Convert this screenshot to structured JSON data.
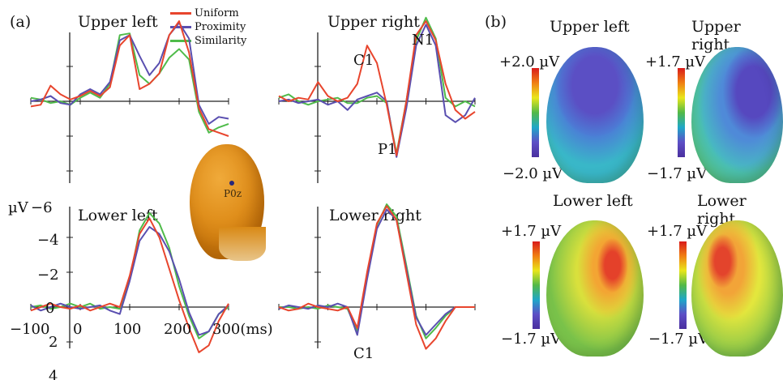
{
  "figure": {
    "panel_a_label": "(a)",
    "panel_b_label": "(b)",
    "electrode_label": "P0z"
  },
  "legend": [
    {
      "label": "Uniform",
      "color": "#e8452d"
    },
    {
      "label": "Proximity",
      "color": "#5a4fb0"
    },
    {
      "label": "Similarity",
      "color": "#4fbb4a"
    }
  ],
  "axis": {
    "y_unit_label": "µV",
    "y_ticks": [
      "−6",
      "−4",
      "−2",
      "0",
      "2",
      "4"
    ],
    "x_ticks": [
      "−100",
      "0",
      "100",
      "200",
      "300(ms)"
    ]
  },
  "chart_data": [
    {
      "type": "line",
      "title": "Upper left",
      "x": [
        -100,
        -80,
        -60,
        -40,
        -20,
        0,
        20,
        40,
        60,
        80,
        100,
        120,
        140,
        160,
        180,
        200,
        220,
        240,
        260,
        280,
        300
      ],
      "xlim": [
        -100,
        300
      ],
      "ylim": [
        4,
        -6
      ],
      "series": [
        {
          "name": "Uniform",
          "values": [
            0.3,
            0.2,
            -0.9,
            -0.4,
            -0.1,
            -0.3,
            -0.6,
            -0.3,
            -0.8,
            -3.2,
            -3.8,
            -0.7,
            -1.0,
            -1.6,
            -3.8,
            -4.6,
            -2.8,
            0.4,
            1.6,
            1.8,
            2.0
          ]
        },
        {
          "name": "Proximity",
          "values": [
            0.0,
            -0.1,
            -0.3,
            0.1,
            0.2,
            -0.4,
            -0.7,
            -0.4,
            -1.1,
            -3.5,
            -3.8,
            -2.6,
            -1.5,
            -2.2,
            -3.8,
            -4.5,
            -3.6,
            0.2,
            1.3,
            0.9,
            1.0
          ]
        },
        {
          "name": "Similarity",
          "values": [
            -0.2,
            -0.1,
            0.1,
            0.0,
            0.2,
            -0.2,
            -0.5,
            -0.2,
            -1.0,
            -3.8,
            -3.9,
            -1.5,
            -1.0,
            -1.6,
            -2.5,
            -3.0,
            -2.4,
            0.6,
            1.8,
            1.5,
            1.3
          ]
        }
      ]
    },
    {
      "type": "line",
      "title": "Upper right",
      "annotations": [
        "C1",
        "N1",
        "P1"
      ],
      "x": [
        -100,
        -80,
        -60,
        -40,
        -20,
        0,
        20,
        40,
        60,
        80,
        100,
        120,
        140,
        160,
        180,
        200,
        220,
        240,
        260,
        280,
        300
      ],
      "xlim": [
        -100,
        300
      ],
      "ylim": [
        4,
        -6
      ],
      "series": [
        {
          "name": "Uniform",
          "values": [
            -0.3,
            0.0,
            -0.2,
            -0.1,
            -1.1,
            -0.3,
            0.0,
            -0.2,
            -1.0,
            -3.2,
            -2.2,
            0.2,
            3.1,
            0.0,
            -3.8,
            -4.6,
            -3.5,
            -1.0,
            0.5,
            1.0,
            0.6
          ]
        },
        {
          "name": "Proximity",
          "values": [
            0.0,
            -0.1,
            0.1,
            0.0,
            -0.1,
            0.2,
            0.0,
            0.5,
            -0.1,
            -0.3,
            -0.5,
            0.0,
            3.2,
            0.4,
            -3.2,
            -4.4,
            -3.2,
            0.8,
            1.2,
            0.8,
            -0.2
          ]
        },
        {
          "name": "Similarity",
          "values": [
            -0.2,
            -0.4,
            0.0,
            0.2,
            0.0,
            -0.1,
            -0.2,
            0.1,
            0.1,
            -0.2,
            -0.3,
            0.1,
            3.0,
            0.0,
            -3.5,
            -4.8,
            -3.6,
            -0.2,
            0.3,
            0.0,
            0.3
          ]
        }
      ]
    },
    {
      "type": "line",
      "title": "Lower left",
      "x": [
        -100,
        -80,
        -60,
        -40,
        -20,
        0,
        20,
        40,
        60,
        80,
        100,
        120,
        140,
        160,
        180,
        200,
        220,
        240,
        260,
        280,
        300
      ],
      "xlim": [
        -100,
        300
      ],
      "ylim": [
        4,
        -6
      ],
      "series": [
        {
          "name": "Uniform",
          "values": [
            0.2,
            0.0,
            -0.2,
            0.0,
            0.1,
            -0.1,
            0.2,
            0.0,
            -0.2,
            0.0,
            -1.8,
            -4.2,
            -5.1,
            -4.0,
            -2.2,
            -0.4,
            1.2,
            2.6,
            2.2,
            0.8,
            -0.2
          ]
        },
        {
          "name": "Proximity",
          "values": [
            -0.1,
            0.2,
            0.0,
            -0.2,
            0.0,
            0.1,
            0.0,
            -0.1,
            0.2,
            0.4,
            -1.5,
            -3.8,
            -4.6,
            -4.2,
            -3.2,
            -1.6,
            0.3,
            1.6,
            1.4,
            0.4,
            -0.1
          ]
        },
        {
          "name": "Similarity",
          "values": [
            0.0,
            -0.1,
            0.1,
            0.0,
            -0.2,
            0.0,
            -0.2,
            0.1,
            0.0,
            0.1,
            -1.6,
            -4.4,
            -5.4,
            -4.8,
            -3.4,
            -1.2,
            0.5,
            1.8,
            1.4,
            0.4,
            0.0
          ]
        }
      ]
    },
    {
      "type": "line",
      "title": "Lower right",
      "annotations": [
        "C1"
      ],
      "x": [
        -100,
        -80,
        -60,
        -40,
        -20,
        0,
        20,
        40,
        60,
        80,
        100,
        120,
        140,
        160,
        180,
        200,
        220,
        240,
        260,
        280,
        300
      ],
      "xlim": [
        -100,
        300
      ],
      "ylim": [
        4,
        -6
      ],
      "series": [
        {
          "name": "Uniform",
          "values": [
            0.0,
            0.2,
            0.1,
            -0.2,
            0.0,
            0.1,
            0.2,
            0.0,
            1.2,
            -2.0,
            -4.8,
            -5.8,
            -5.0,
            -2.0,
            1.0,
            2.4,
            1.8,
            0.8,
            0.0,
            0.0,
            0.0
          ]
        },
        {
          "name": "Proximity",
          "values": [
            0.1,
            -0.1,
            0.0,
            0.1,
            -0.1,
            0.0,
            -0.2,
            0.0,
            1.6,
            -1.6,
            -4.5,
            -5.6,
            -5.0,
            -2.2,
            0.6,
            1.6,
            1.0,
            0.4,
            0.0,
            0.0,
            0.0
          ]
        },
        {
          "name": "Similarity",
          "values": [
            0.0,
            0.0,
            0.1,
            0.0,
            0.1,
            -0.1,
            0.0,
            0.1,
            1.4,
            -1.8,
            -4.7,
            -5.9,
            -5.2,
            -2.4,
            0.5,
            1.8,
            1.2,
            0.5,
            0.0,
            0.0,
            0.0
          ]
        }
      ]
    }
  ],
  "topomaps": [
    {
      "title": "Upper left",
      "max_label": "+2.0 µV",
      "min_label": "−2.0 µV"
    },
    {
      "title": "Upper right",
      "max_label": "+1.7 µV",
      "min_label": "−1.7 µV"
    },
    {
      "title": "Lower left",
      "max_label": "+1.7 µV",
      "min_label": "−1.7 µV"
    },
    {
      "title": "Lower right",
      "max_label": "+1.7 µV",
      "min_label": "−1.7 µV"
    }
  ]
}
